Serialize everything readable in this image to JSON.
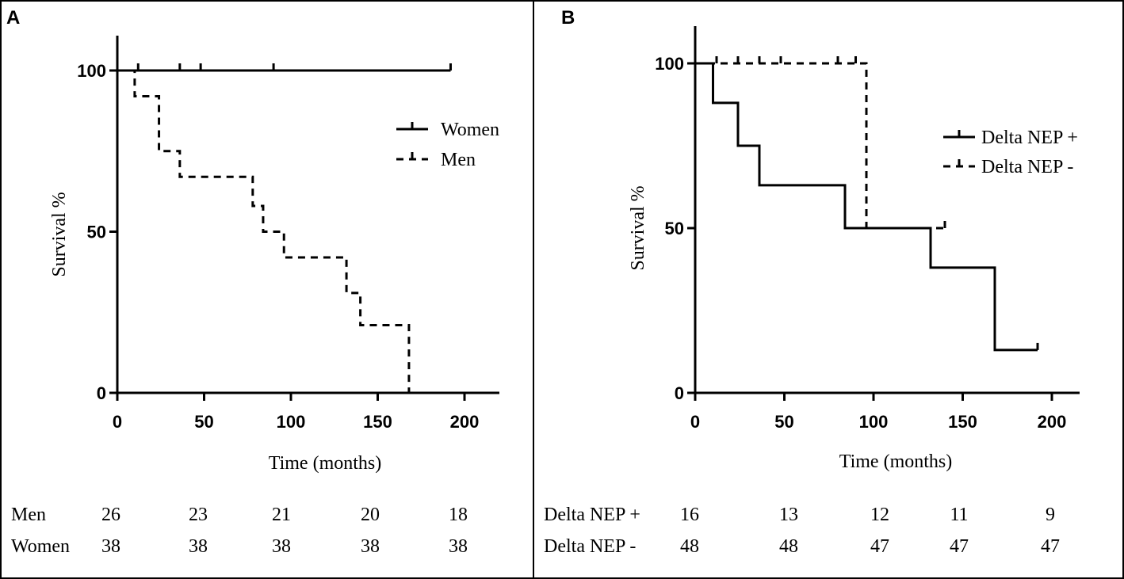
{
  "chart_data": [
    {
      "type": "line",
      "subtype": "kaplan-meier",
      "panel": "A",
      "xlabel": "Time (months)",
      "ylabel": "Survival %",
      "xticks": [
        0,
        50,
        100,
        150,
        200
      ],
      "yticks": [
        0,
        50,
        100
      ],
      "xlim": [
        0,
        220
      ],
      "ylim": [
        0,
        110
      ],
      "legend_position": "right",
      "series": [
        {
          "name": "Women",
          "style": "solid",
          "steps": [
            [
              0,
              100
            ],
            [
              192,
              100
            ]
          ],
          "censored": [
            12,
            36,
            48,
            90,
            192
          ]
        },
        {
          "name": "Men",
          "style": "dashed",
          "steps": [
            [
              0,
              100
            ],
            [
              10,
              92
            ],
            [
              24,
              75
            ],
            [
              36,
              67
            ],
            [
              78,
              58
            ],
            [
              84,
              50
            ],
            [
              96,
              42
            ],
            [
              132,
              31
            ],
            [
              140,
              21
            ],
            [
              168,
              0
            ]
          ],
          "end": 168,
          "censored": []
        }
      ],
      "risk_table": {
        "times": [
          0,
          50,
          100,
          150,
          200
        ],
        "rows": [
          {
            "label": "Men",
            "values": [
              "26",
              "23",
              "21",
              "20",
              "18"
            ]
          },
          {
            "label": "Women",
            "values": [
              "38",
              "38",
              "38",
              "38",
              "38"
            ]
          }
        ]
      }
    },
    {
      "type": "line",
      "subtype": "kaplan-meier",
      "panel": "B",
      "xlabel": "Time (months)",
      "ylabel": "Survival %",
      "xticks": [
        0,
        50,
        100,
        150,
        200
      ],
      "yticks": [
        0,
        50,
        100
      ],
      "xlim": [
        0,
        215
      ],
      "ylim": [
        0,
        111
      ],
      "legend_position": "top-right",
      "series": [
        {
          "name": "Delta NEP +",
          "style": "solid",
          "steps": [
            [
              0,
              100
            ],
            [
              10,
              88
            ],
            [
              24,
              75
            ],
            [
              36,
              63
            ],
            [
              84,
              50
            ],
            [
              132,
              38
            ],
            [
              168,
              13
            ]
          ],
          "end": 192,
          "censored": [
            192
          ]
        },
        {
          "name": "Delta NEP -",
          "style": "dashed",
          "steps": [
            [
              0,
              100
            ],
            [
              96,
              50
            ]
          ],
          "end": 140,
          "censored": [
            12,
            24,
            36,
            48,
            80,
            90,
            140
          ]
        }
      ],
      "risk_table": {
        "times": [
          0,
          50,
          100,
          150,
          200
        ],
        "rows": [
          {
            "label": "Delta NEP +",
            "values": [
              "16",
              "13",
              "12",
              "11",
              "9"
            ]
          },
          {
            "label": "Delta NEP -",
            "values": [
              "48",
              "48",
              "47",
              "47",
              "47"
            ]
          }
        ]
      }
    }
  ]
}
